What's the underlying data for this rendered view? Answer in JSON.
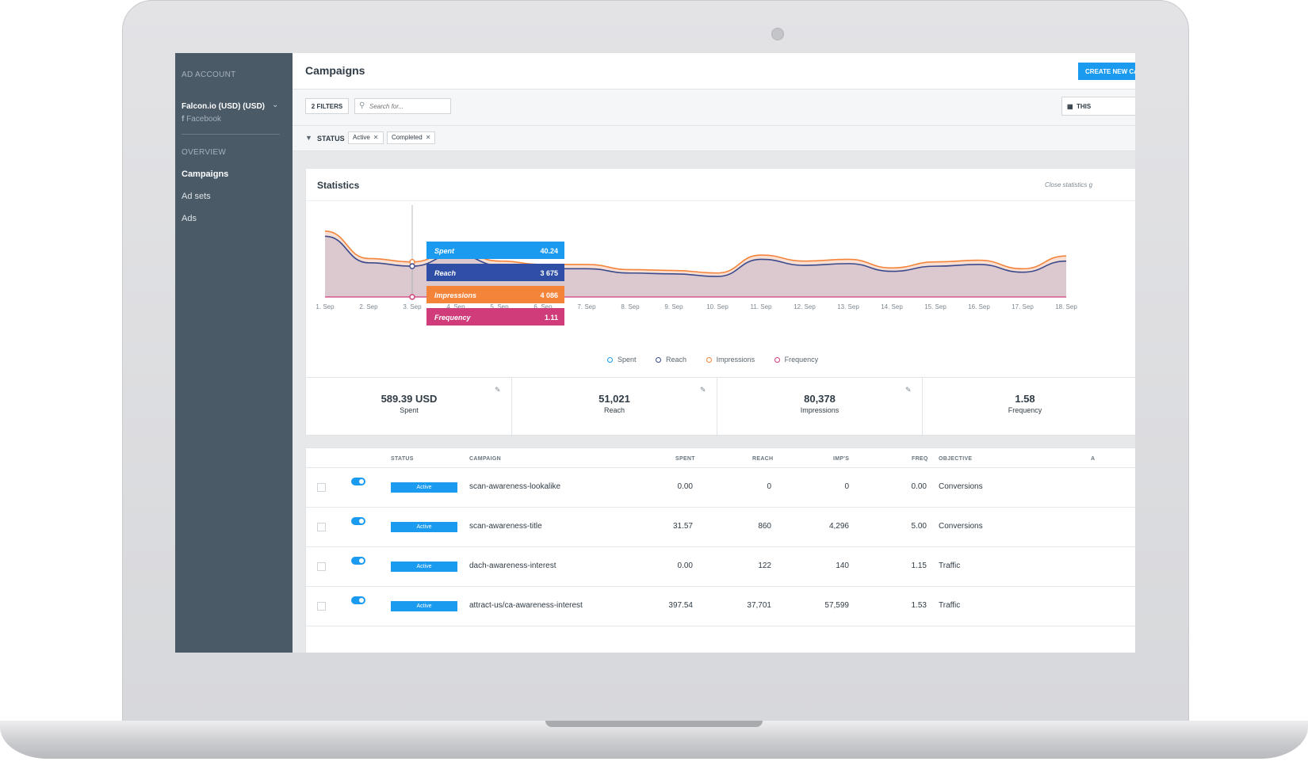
{
  "sidebar": {
    "section_account": "AD ACCOUNT",
    "account_name": "Falcon.io (USD) (USD)",
    "account_platform": "Facebook",
    "section_overview": "OVERVIEW",
    "items": [
      {
        "label": "Campaigns",
        "active": true
      },
      {
        "label": "Ad sets",
        "active": false
      },
      {
        "label": "Ads",
        "active": false
      }
    ]
  },
  "header": {
    "title": "Campaigns",
    "create_button": "CREATE NEW CA"
  },
  "filterbar": {
    "filters_button": "2 FILTERS",
    "search_placeholder": "Search for...",
    "date_button": "THIS"
  },
  "status_filter": {
    "label": "STATUS",
    "chips": [
      "Active",
      "Completed"
    ]
  },
  "statistics": {
    "title": "Statistics",
    "close_label": "Close statistics g"
  },
  "chart_data": {
    "type": "area",
    "categories": [
      "1. Sep",
      "2. Sep",
      "3. Sep",
      "4. Sep",
      "5. Sep",
      "6. Sep",
      "7. Sep",
      "8. Sep",
      "9. Sep",
      "10. Sep",
      "11. Sep",
      "12. Sep",
      "13. Sep",
      "14. Sep",
      "15. Sep",
      "16. Sep",
      "17. Sep",
      "18. Sep"
    ],
    "series": [
      {
        "name": "Spent",
        "color": "#1a9bf0"
      },
      {
        "name": "Reach",
        "color": "#3b4a8c",
        "values": [
          71,
          40,
          36,
          50,
          37,
          33,
          33,
          28,
          27,
          24,
          44,
          37,
          39,
          30,
          36,
          38,
          29,
          42
        ]
      },
      {
        "name": "Impressions",
        "color": "#f5843b",
        "values": [
          77,
          45,
          41,
          55,
          42,
          38,
          38,
          32,
          31,
          28,
          49,
          42,
          44,
          34,
          41,
          43,
          33,
          48
        ]
      },
      {
        "name": "Frequency",
        "color": "#cf3c79"
      }
    ],
    "tooltip": {
      "category": "3. Sep",
      "rows": [
        {
          "name": "Spent",
          "value": "40.24",
          "color": "#1a9bf0"
        },
        {
          "name": "Reach",
          "value": "3 675",
          "color": "#2f4fa6"
        },
        {
          "name": "Impressions",
          "value": "4 086",
          "color": "#f5843b"
        },
        {
          "name": "Frequency",
          "value": "1.11",
          "color": "#cf3c79"
        }
      ]
    },
    "ylim": [
      0,
      100
    ],
    "grid": false,
    "legend": "bottom-center"
  },
  "kpis": [
    {
      "value": "589.39 USD",
      "label": "Spent",
      "editable": true
    },
    {
      "value": "51,021",
      "label": "Reach",
      "editable": true
    },
    {
      "value": "80,378",
      "label": "Impressions",
      "editable": true
    },
    {
      "value": "1.58",
      "label": "Frequency",
      "editable": false
    }
  ],
  "table": {
    "headers": {
      "status": "STATUS",
      "campaign": "CAMPAIGN",
      "spent": "SPENT",
      "reach": "REACH",
      "imps": "IMP'S",
      "freq": "FREQ",
      "objective": "OBJECTIVE",
      "extra": "A"
    },
    "rows": [
      {
        "status": "Active",
        "campaign": "scan-awareness-lookalike",
        "spent": "0.00",
        "reach": "0",
        "imps": "0",
        "freq": "0.00",
        "objective": "Conversions"
      },
      {
        "status": "Active",
        "campaign": "scan-awareness-title",
        "spent": "31.57",
        "reach": "860",
        "imps": "4,296",
        "freq": "5.00",
        "objective": "Conversions"
      },
      {
        "status": "Active",
        "campaign": "dach-awareness-interest",
        "spent": "0.00",
        "reach": "122",
        "imps": "140",
        "freq": "1.15",
        "objective": "Traffic"
      },
      {
        "status": "Active",
        "campaign": "attract-us/ca-awareness-interest",
        "spent": "397.54",
        "reach": "37,701",
        "imps": "57,599",
        "freq": "1.53",
        "objective": "Traffic"
      }
    ]
  }
}
